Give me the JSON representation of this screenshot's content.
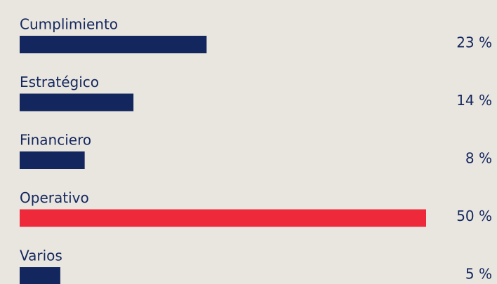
{
  "chart_data": {
    "type": "hbar",
    "categories": [
      "Cumplimiento",
      "Estratégico",
      "Financiero",
      "Operativo",
      "Varios"
    ],
    "values": [
      23,
      14,
      8,
      50,
      5
    ],
    "value_labels": [
      "23 %",
      "14 %",
      "8 %",
      "50 %",
      "5 %"
    ],
    "colors": [
      "#13275e",
      "#13275e",
      "#13275e",
      "#ee2a3a",
      "#13275e"
    ]
  }
}
